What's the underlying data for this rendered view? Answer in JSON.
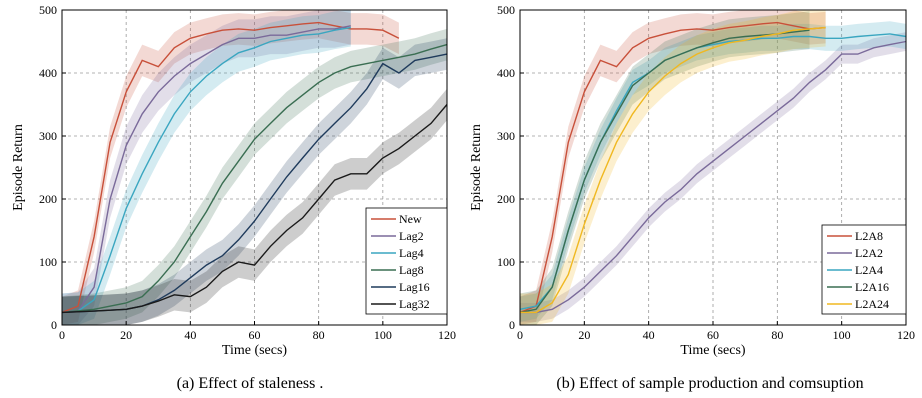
{
  "chart_data": [
    {
      "type": "line",
      "caption": "(a) Effect of staleness .",
      "xlabel": "Time (secs)",
      "ylabel": "Episode Return",
      "xlim": [
        0,
        120
      ],
      "ylim": [
        0,
        500
      ],
      "xticks": [
        0,
        20,
        40,
        60,
        80,
        100,
        120
      ],
      "yticks": [
        0,
        100,
        200,
        300,
        400,
        500
      ],
      "grid": true,
      "legend_position": "bottom-right",
      "series": [
        {
          "name": "New",
          "color": "#c8503a",
          "band": 25,
          "x": [
            0,
            5,
            10,
            15,
            20,
            25,
            30,
            35,
            40,
            45,
            50,
            55,
            60,
            65,
            70,
            75,
            80,
            85,
            90,
            95,
            100,
            105
          ],
          "y": [
            20,
            30,
            140,
            290,
            370,
            420,
            410,
            440,
            455,
            462,
            468,
            470,
            468,
            472,
            475,
            478,
            480,
            475,
            470,
            470,
            468,
            455
          ]
        },
        {
          "name": "Lag2",
          "color": "#7a6a9a",
          "band": 30,
          "x": [
            0,
            5,
            10,
            15,
            20,
            25,
            30,
            35,
            40,
            45,
            50,
            55,
            60,
            65,
            70,
            75,
            80,
            85,
            90
          ],
          "y": [
            20,
            22,
            60,
            200,
            285,
            335,
            370,
            395,
            415,
            430,
            445,
            455,
            455,
            460,
            460,
            465,
            470,
            470,
            475
          ]
        },
        {
          "name": "Lag4",
          "color": "#3aa6c0",
          "band": 30,
          "x": [
            0,
            5,
            10,
            15,
            20,
            25,
            30,
            35,
            40,
            45,
            50,
            55,
            60,
            65,
            70,
            75,
            80,
            85,
            90
          ],
          "y": [
            20,
            22,
            40,
            110,
            185,
            240,
            290,
            335,
            370,
            395,
            415,
            432,
            440,
            450,
            455,
            460,
            462,
            468,
            472
          ]
        },
        {
          "name": "Lag8",
          "color": "#3a6e52",
          "band": 25,
          "x": [
            0,
            10,
            20,
            25,
            30,
            35,
            40,
            45,
            50,
            55,
            60,
            65,
            70,
            75,
            80,
            85,
            90,
            95,
            100,
            105,
            110,
            115,
            120
          ],
          "y": [
            20,
            25,
            35,
            45,
            70,
            100,
            140,
            180,
            225,
            260,
            295,
            320,
            345,
            365,
            385,
            400,
            410,
            415,
            420,
            425,
            430,
            438,
            445
          ]
        },
        {
          "name": "Lag16",
          "color": "#1f3b5c",
          "band": 25,
          "x": [
            0,
            10,
            20,
            25,
            30,
            35,
            40,
            45,
            50,
            55,
            60,
            65,
            70,
            75,
            80,
            85,
            90,
            95,
            100,
            105,
            110,
            115,
            120
          ],
          "y": [
            20,
            22,
            25,
            30,
            40,
            55,
            75,
            95,
            110,
            135,
            165,
            200,
            235,
            265,
            295,
            320,
            345,
            375,
            415,
            400,
            420,
            425,
            430
          ]
        },
        {
          "name": "Lag32",
          "color": "#1a1a1a",
          "band": 25,
          "x": [
            0,
            10,
            20,
            25,
            30,
            35,
            40,
            45,
            50,
            55,
            60,
            65,
            70,
            75,
            80,
            85,
            90,
            95,
            100,
            105,
            110,
            115,
            120
          ],
          "y": [
            20,
            22,
            25,
            30,
            38,
            48,
            45,
            60,
            85,
            100,
            95,
            125,
            150,
            170,
            200,
            230,
            240,
            240,
            265,
            280,
            300,
            320,
            350
          ]
        }
      ]
    },
    {
      "type": "line",
      "caption": "(b) Effect of sample production and comsuption",
      "xlabel": "Time (secs)",
      "ylabel": "Episode Return",
      "xlim": [
        0,
        120
      ],
      "ylim": [
        0,
        500
      ],
      "xticks": [
        0,
        20,
        40,
        60,
        80,
        100,
        120
      ],
      "yticks": [
        0,
        100,
        200,
        300,
        400,
        500
      ],
      "grid": true,
      "legend_position": "bottom-right",
      "series": [
        {
          "name": "L2A8",
          "color": "#c8503a",
          "band": 25,
          "x": [
            0,
            5,
            10,
            15,
            20,
            25,
            30,
            35,
            40,
            45,
            50,
            55,
            60,
            65,
            70,
            75,
            80,
            85,
            90,
            95
          ],
          "y": [
            20,
            30,
            140,
            290,
            370,
            420,
            410,
            440,
            455,
            462,
            468,
            470,
            468,
            472,
            475,
            478,
            480,
            475,
            470,
            472
          ]
        },
        {
          "name": "L2A2",
          "color": "#7a6a9a",
          "band": 15,
          "x": [
            0,
            5,
            10,
            15,
            20,
            25,
            30,
            35,
            40,
            45,
            50,
            55,
            60,
            65,
            70,
            75,
            80,
            85,
            90,
            95,
            100,
            105,
            110,
            115,
            120
          ],
          "y": [
            20,
            20,
            25,
            40,
            60,
            85,
            110,
            140,
            170,
            195,
            215,
            240,
            260,
            280,
            300,
            320,
            340,
            360,
            385,
            405,
            430,
            430,
            440,
            445,
            450
          ]
        },
        {
          "name": "L2A4",
          "color": "#3aa6c0",
          "band": 20,
          "x": [
            0,
            5,
            10,
            15,
            20,
            25,
            30,
            35,
            40,
            45,
            50,
            55,
            60,
            65,
            70,
            75,
            80,
            85,
            90,
            95,
            100,
            105,
            110,
            115,
            120
          ],
          "y": [
            25,
            30,
            60,
            150,
            230,
            290,
            340,
            385,
            400,
            420,
            430,
            440,
            445,
            450,
            452,
            455,
            455,
            458,
            458,
            455,
            455,
            458,
            460,
            462,
            458
          ]
        },
        {
          "name": "L2A16",
          "color": "#3a6e52",
          "band": 30,
          "x": [
            0,
            5,
            10,
            15,
            20,
            25,
            30,
            35,
            40,
            45,
            50,
            55,
            60,
            65,
            70,
            75,
            80,
            85,
            90
          ],
          "y": [
            20,
            25,
            60,
            150,
            230,
            290,
            335,
            380,
            400,
            420,
            430,
            440,
            448,
            455,
            458,
            460,
            462,
            465,
            468
          ]
        },
        {
          "name": "L2A24",
          "color": "#f0b820",
          "band": 30,
          "x": [
            0,
            5,
            10,
            15,
            20,
            25,
            30,
            35,
            40,
            45,
            50,
            55,
            60,
            65,
            70,
            75,
            80,
            85,
            90,
            95
          ],
          "y": [
            20,
            20,
            35,
            80,
            160,
            230,
            290,
            335,
            370,
            395,
            415,
            430,
            440,
            448,
            452,
            458,
            462,
            468,
            470,
            472
          ]
        }
      ]
    }
  ]
}
